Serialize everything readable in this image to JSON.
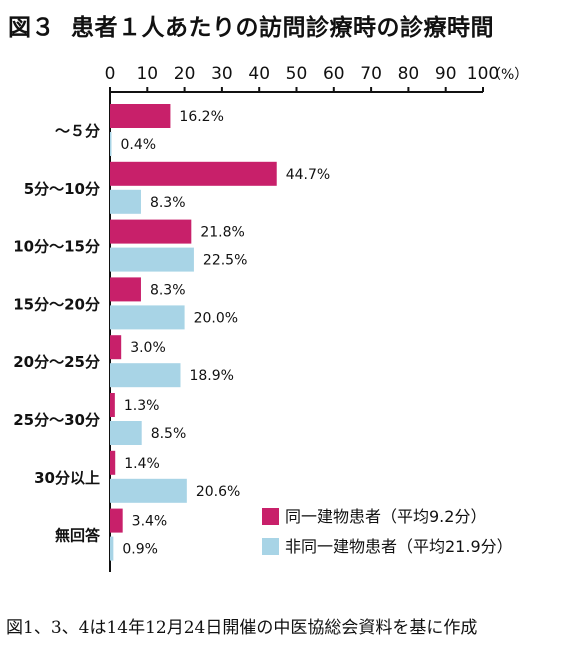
{
  "title": {
    "figure_label": "図３",
    "text": "患者１人あたりの訪問診療時の診療時間"
  },
  "footnote": "図1、3、4は14年12月24日開催の中医協総会資料を基に作成",
  "chart_data": {
    "type": "bar",
    "orientation": "horizontal",
    "title": "患者１人あたりの訪問診療時の診療時間",
    "unit_label": "（%）",
    "xlim": [
      0,
      100
    ],
    "ticks": [
      0,
      10,
      20,
      30,
      40,
      50,
      60,
      70,
      80,
      90,
      100
    ],
    "categories": [
      "〜５分",
      "5分〜10分",
      "10分〜15分",
      "15分〜20分",
      "20分〜25分",
      "25分〜30分",
      "30分以上",
      "無回答"
    ],
    "series": [
      {
        "name": "同一建物患者（平均9.2分）",
        "color": "#C8206A",
        "values": [
          16.2,
          44.7,
          21.8,
          8.3,
          3.0,
          1.3,
          1.4,
          3.4
        ],
        "labels": [
          "16.2%",
          "44.7%",
          "21.8%",
          "8.3%",
          "3.0%",
          "1.3%",
          "1.4%",
          "3.4%"
        ]
      },
      {
        "name": "非同一建物患者（平均21.9分）",
        "color": "#A8D4E6",
        "values": [
          0.4,
          8.3,
          22.5,
          20.0,
          18.9,
          8.5,
          20.6,
          0.9
        ],
        "labels": [
          "0.4%",
          "8.3%",
          "22.5%",
          "20.0%",
          "18.9%",
          "8.5%",
          "20.6%",
          "0.9%"
        ]
      }
    ],
    "legend_position": "bottom-right",
    "grid": false
  }
}
